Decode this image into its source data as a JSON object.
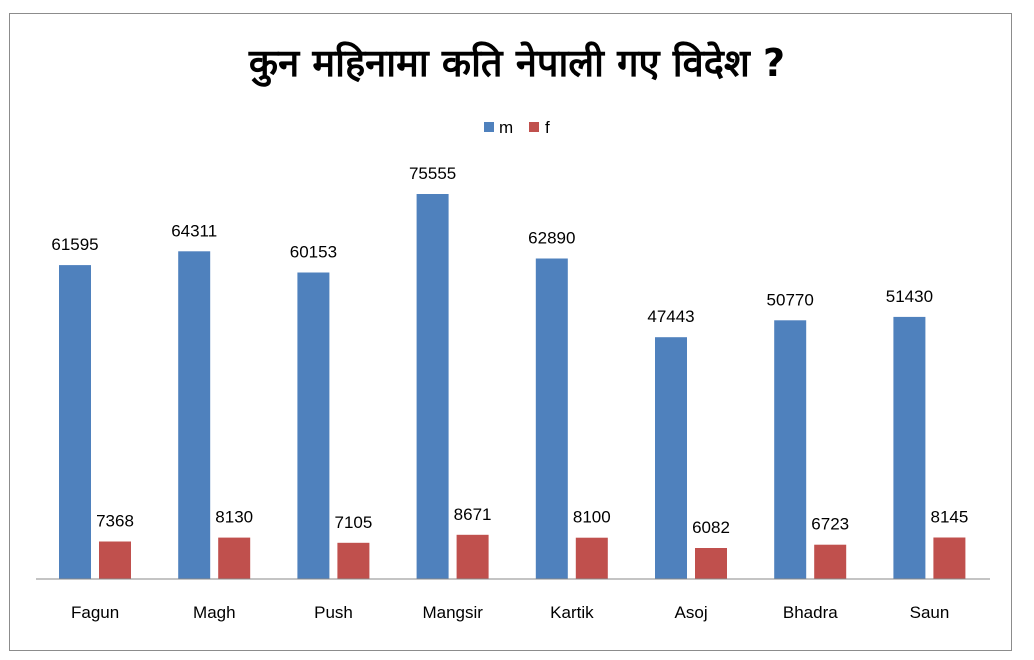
{
  "chart_data": {
    "type": "bar",
    "title": "कुन महिनामा कति नेपाली गए विदेश ?",
    "categories": [
      "Fagun",
      "Magh",
      "Push",
      "Mangsir",
      "Kartik",
      "Asoj",
      "Bhadra",
      "Saun"
    ],
    "series": [
      {
        "name": "m",
        "color": "#4f81bd",
        "values": [
          61595,
          64311,
          60153,
          75555,
          62890,
          47443,
          50770,
          51430
        ]
      },
      {
        "name": "f",
        "color": "#c0504d",
        "values": [
          7368,
          8130,
          7105,
          8671,
          8100,
          6082,
          6723,
          8145
        ]
      }
    ],
    "xlabel": "",
    "ylabel": "",
    "ylim": [
      0,
      80000
    ],
    "grid": false,
    "legend_position": "top-center",
    "data_labels": true
  }
}
